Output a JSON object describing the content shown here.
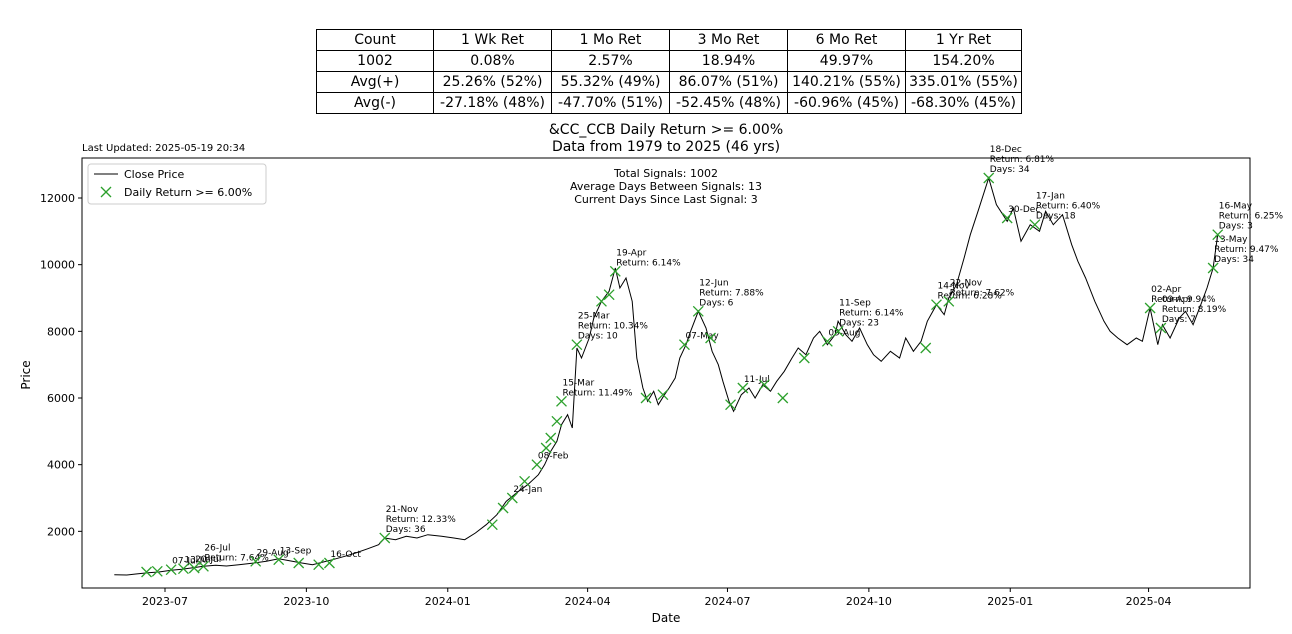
{
  "stats_table": {
    "headers": [
      "Count",
      "1 Wk Ret",
      "1 Mo Ret",
      "3 Mo Ret",
      "6 Mo Ret",
      "1 Yr Ret"
    ],
    "rows": [
      [
        "1002",
        "0.08%",
        "2.57%",
        "18.94%",
        "49.97%",
        "154.20%"
      ],
      [
        "Avg(+)",
        "25.26% (52%)",
        "55.32% (49%)",
        "86.07% (51%)",
        "140.21% (55%)",
        "335.01% (55%)"
      ],
      [
        "Avg(-)",
        "-27.18% (48%)",
        "-47.70% (51%)",
        "-52.45% (48%)",
        "-60.96% (45%)",
        "-68.30% (45%)"
      ]
    ]
  },
  "last_updated": "Last Updated: 2025-05-19 20:34",
  "chart_data": {
    "type": "line",
    "title": "&CC_CCB Daily Return >= 6.00%",
    "subtitle": "Data from 1979 to 2025 (46 yrs)",
    "xlabel": "Date",
    "ylabel": "Price",
    "xlim": [
      "2023-05-08",
      "2025-06-06"
    ],
    "ylim": [
      300,
      13200
    ],
    "x_ticks": [
      {
        "date": "2023-07-01",
        "label": "2023-07"
      },
      {
        "date": "2023-10-01",
        "label": "2023-10"
      },
      {
        "date": "2024-01-01",
        "label": "2024-01"
      },
      {
        "date": "2024-04-01",
        "label": "2024-04"
      },
      {
        "date": "2024-07-01",
        "label": "2024-07"
      },
      {
        "date": "2024-10-01",
        "label": "2024-10"
      },
      {
        "date": "2025-01-01",
        "label": "2025-01"
      },
      {
        "date": "2025-04-01",
        "label": "2025-04"
      }
    ],
    "y_ticks": [
      2000,
      4000,
      6000,
      8000,
      10000,
      12000
    ],
    "legend": {
      "placement": "upper-left",
      "entries": [
        "Close Price",
        "Daily Return >= 6.00%"
      ]
    },
    "stats_box": [
      "Total Signals: 1002",
      "Average Days Between Signals: 13",
      "Current Days Since Last Signal: 3"
    ],
    "colors": {
      "line": "#000000",
      "marker": "#2ca02c"
    },
    "series": [
      {
        "name": "Close Price",
        "points": [
          [
            "2023-05-29",
            700
          ],
          [
            "2023-06-06",
            690
          ],
          [
            "2023-06-12",
            720
          ],
          [
            "2023-06-20",
            760
          ],
          [
            "2023-06-27",
            780
          ],
          [
            "2023-07-05",
            830
          ],
          [
            "2023-07-12",
            860
          ],
          [
            "2023-07-18",
            900
          ],
          [
            "2023-07-26",
            950
          ],
          [
            "2023-08-03",
            980
          ],
          [
            "2023-08-10",
            960
          ],
          [
            "2023-08-18",
            1000
          ],
          [
            "2023-08-28",
            1050
          ],
          [
            "2023-09-05",
            1100
          ],
          [
            "2023-09-13",
            1180
          ],
          [
            "2023-09-20",
            1120
          ],
          [
            "2023-09-28",
            1050
          ],
          [
            "2023-10-05",
            1000
          ],
          [
            "2023-10-12",
            1080
          ],
          [
            "2023-10-18",
            1150
          ],
          [
            "2023-10-26",
            1250
          ],
          [
            "2023-11-02",
            1350
          ],
          [
            "2023-11-10",
            1480
          ],
          [
            "2023-11-17",
            1600
          ],
          [
            "2023-11-21",
            1800
          ],
          [
            "2023-11-28",
            1750
          ],
          [
            "2023-12-05",
            1850
          ],
          [
            "2023-12-12",
            1800
          ],
          [
            "2023-12-19",
            1900
          ],
          [
            "2023-12-28",
            1850
          ],
          [
            "2024-01-05",
            1800
          ],
          [
            "2024-01-12",
            1750
          ],
          [
            "2024-01-19",
            1950
          ],
          [
            "2024-01-26",
            2200
          ],
          [
            "2024-02-02",
            2500
          ],
          [
            "2024-02-08",
            2900
          ],
          [
            "2024-02-16",
            3200
          ],
          [
            "2024-02-22",
            3400
          ],
          [
            "2024-02-29",
            3700
          ],
          [
            "2024-03-04",
            4000
          ],
          [
            "2024-03-08",
            4400
          ],
          [
            "2024-03-12",
            4700
          ],
          [
            "2024-03-15",
            5200
          ],
          [
            "2024-03-19",
            5500
          ],
          [
            "2024-03-22",
            5100
          ],
          [
            "2024-03-25",
            7500
          ],
          [
            "2024-03-28",
            7200
          ],
          [
            "2024-04-02",
            7800
          ],
          [
            "2024-04-05",
            8400
          ],
          [
            "2024-04-10",
            8900
          ],
          [
            "2024-04-15",
            9200
          ],
          [
            "2024-04-19",
            9900
          ],
          [
            "2024-04-22",
            9300
          ],
          [
            "2024-04-26",
            9600
          ],
          [
            "2024-04-30",
            8900
          ],
          [
            "2024-05-03",
            7200
          ],
          [
            "2024-05-07",
            6300
          ],
          [
            "2024-05-10",
            5900
          ],
          [
            "2024-05-14",
            6200
          ],
          [
            "2024-05-17",
            5800
          ],
          [
            "2024-05-21",
            6100
          ],
          [
            "2024-05-24",
            6300
          ],
          [
            "2024-05-28",
            6600
          ],
          [
            "2024-05-31",
            7200
          ],
          [
            "2024-06-04",
            7600
          ],
          [
            "2024-06-07",
            8000
          ],
          [
            "2024-06-12",
            8600
          ],
          [
            "2024-06-17",
            8100
          ],
          [
            "2024-06-21",
            7400
          ],
          [
            "2024-06-25",
            7000
          ],
          [
            "2024-06-28",
            6500
          ],
          [
            "2024-07-02",
            5900
          ],
          [
            "2024-07-05",
            5600
          ],
          [
            "2024-07-10",
            6100
          ],
          [
            "2024-07-15",
            6300
          ],
          [
            "2024-07-19",
            6000
          ],
          [
            "2024-07-24",
            6400
          ],
          [
            "2024-07-29",
            6200
          ],
          [
            "2024-08-02",
            6500
          ],
          [
            "2024-08-07",
            6800
          ],
          [
            "2024-08-12",
            7200
          ],
          [
            "2024-08-16",
            7500
          ],
          [
            "2024-08-21",
            7300
          ],
          [
            "2024-08-26",
            7800
          ],
          [
            "2024-08-30",
            8000
          ],
          [
            "2024-09-04",
            7600
          ],
          [
            "2024-09-09",
            7900
          ],
          [
            "2024-09-11",
            8300
          ],
          [
            "2024-09-16",
            7900
          ],
          [
            "2024-09-20",
            7700
          ],
          [
            "2024-09-25",
            8100
          ],
          [
            "2024-09-30",
            7600
          ],
          [
            "2024-10-04",
            7300
          ],
          [
            "2024-10-09",
            7100
          ],
          [
            "2024-10-15",
            7400
          ],
          [
            "2024-10-21",
            7200
          ],
          [
            "2024-10-25",
            7800
          ],
          [
            "2024-10-30",
            7400
          ],
          [
            "2024-11-04",
            7700
          ],
          [
            "2024-11-08",
            8300
          ],
          [
            "2024-11-14",
            8800
          ],
          [
            "2024-11-19",
            8500
          ],
          [
            "2024-11-22",
            9000
          ],
          [
            "2024-11-27",
            9400
          ],
          [
            "2024-12-02",
            10200
          ],
          [
            "2024-12-06",
            10900
          ],
          [
            "2024-12-11",
            11600
          ],
          [
            "2024-12-18",
            12600
          ],
          [
            "2024-12-23",
            11800
          ],
          [
            "2024-12-30",
            11300
          ],
          [
            "2025-01-03",
            11700
          ],
          [
            "2025-01-08",
            10700
          ],
          [
            "2025-01-14",
            11200
          ],
          [
            "2025-01-20",
            11000
          ],
          [
            "2025-01-24",
            11600
          ],
          [
            "2025-01-29",
            11200
          ],
          [
            "2025-02-04",
            11500
          ],
          [
            "2025-02-10",
            10600
          ],
          [
            "2025-02-14",
            10100
          ],
          [
            "2025-02-19",
            9600
          ],
          [
            "2025-02-25",
            8900
          ],
          [
            "2025-03-03",
            8300
          ],
          [
            "2025-03-07",
            8000
          ],
          [
            "2025-03-12",
            7800
          ],
          [
            "2025-03-18",
            7600
          ],
          [
            "2025-03-24",
            7800
          ],
          [
            "2025-03-28",
            7700
          ],
          [
            "2025-04-02",
            8700
          ],
          [
            "2025-04-07",
            7600
          ],
          [
            "2025-04-10",
            8200
          ],
          [
            "2025-04-15",
            7800
          ],
          [
            "2025-04-21",
            8400
          ],
          [
            "2025-04-25",
            8600
          ],
          [
            "2025-04-30",
            8200
          ],
          [
            "2025-05-05",
            8800
          ],
          [
            "2025-05-09",
            9300
          ],
          [
            "2025-05-13",
            9900
          ],
          [
            "2025-05-16",
            10900
          ]
        ]
      }
    ],
    "signals": [
      {
        "date": "2023-06-19",
        "price": 780,
        "label": ""
      },
      {
        "date": "2023-06-26",
        "price": 800,
        "label": ""
      },
      {
        "date": "2023-07-05",
        "price": 850,
        "label": "07-Jul"
      },
      {
        "date": "2023-07-13",
        "price": 880,
        "label": "13-Jul"
      },
      {
        "date": "2023-07-20",
        "price": 900,
        "label": "20-Jul"
      },
      {
        "date": "2023-07-26",
        "price": 950,
        "label": "26-Jul",
        "return": "Return: 7.64%"
      },
      {
        "date": "2023-08-29",
        "price": 1100,
        "label": "29-Aug"
      },
      {
        "date": "2023-09-13",
        "price": 1150,
        "label": "13-Sep"
      },
      {
        "date": "2023-09-26",
        "price": 1050,
        "label": ""
      },
      {
        "date": "2023-10-09",
        "price": 1000,
        "label": ""
      },
      {
        "date": "2023-10-16",
        "price": 1050,
        "label": "16-Oct"
      },
      {
        "date": "2023-11-21",
        "price": 1800,
        "label": "21-Nov",
        "return": "Return: 12.33%",
        "days": "Days: 36"
      },
      {
        "date": "2024-01-30",
        "price": 2200,
        "label": ""
      },
      {
        "date": "2024-02-06",
        "price": 2700,
        "label": ""
      },
      {
        "date": "2024-02-12",
        "price": 3000,
        "label": "24-Jan"
      },
      {
        "date": "2024-02-20",
        "price": 3500,
        "label": ""
      },
      {
        "date": "2024-02-28",
        "price": 4000,
        "label": "08-Feb"
      },
      {
        "date": "2024-03-05",
        "price": 4500,
        "label": ""
      },
      {
        "date": "2024-03-08",
        "price": 4800,
        "label": ""
      },
      {
        "date": "2024-03-12",
        "price": 5300,
        "label": ""
      },
      {
        "date": "2024-03-15",
        "price": 5900,
        "label": "15-Mar",
        "return": "Return: 11.49%"
      },
      {
        "date": "2024-03-25",
        "price": 7600,
        "label": "25-Mar",
        "return": "Return: 10.34%",
        "days": "Days: 10"
      },
      {
        "date": "2024-04-10",
        "price": 8900,
        "label": ""
      },
      {
        "date": "2024-04-15",
        "price": 9100,
        "label": ""
      },
      {
        "date": "2024-04-19",
        "price": 9800,
        "label": "19-Apr",
        "return": "Return: 6.14%"
      },
      {
        "date": "2024-05-09",
        "price": 6000,
        "label": ""
      },
      {
        "date": "2024-05-20",
        "price": 6100,
        "label": ""
      },
      {
        "date": "2024-06-03",
        "price": 7600,
        "label": "07-May"
      },
      {
        "date": "2024-06-12",
        "price": 8600,
        "label": "12-Jun",
        "return": "Return: 7.88%",
        "days": "Days: 6"
      },
      {
        "date": "2024-06-20",
        "price": 7800,
        "label": ""
      },
      {
        "date": "2024-07-03",
        "price": 5800,
        "label": ""
      },
      {
        "date": "2024-07-11",
        "price": 6300,
        "label": "11-Jul"
      },
      {
        "date": "2024-07-25",
        "price": 6400,
        "label": ""
      },
      {
        "date": "2024-08-06",
        "price": 6000,
        "label": ""
      },
      {
        "date": "2024-08-20",
        "price": 7200,
        "label": ""
      },
      {
        "date": "2024-09-04",
        "price": 7700,
        "label": "09-Aug"
      },
      {
        "date": "2024-09-11",
        "price": 8000,
        "label": "11-Sep",
        "return": "Return: 6.14%",
        "days": "Days: 23"
      },
      {
        "date": "2024-11-07",
        "price": 7500,
        "label": ""
      },
      {
        "date": "2024-11-14",
        "price": 8800,
        "label": "14-Nov",
        "return": "Return: 6.28%"
      },
      {
        "date": "2024-11-22",
        "price": 8900,
        "label": "22-Nov",
        "return": "Return: 7.62%"
      },
      {
        "date": "2024-12-18",
        "price": 12600,
        "label": "18-Dec",
        "return": "Return: 6.81%",
        "days": "Days: 34"
      },
      {
        "date": "2024-12-30",
        "price": 11400,
        "label": "30-Dec"
      },
      {
        "date": "2025-01-17",
        "price": 11200,
        "label": "17-Jan",
        "return": "Return: 6.40%",
        "days": "Days: 18"
      },
      {
        "date": "2025-04-02",
        "price": 8700,
        "label": "02-Apr",
        "return": "Return: 9.94%"
      },
      {
        "date": "2025-04-09",
        "price": 8100,
        "label": "09-Apr",
        "return": "Return: 8.19%",
        "days": "Days: 7"
      },
      {
        "date": "2025-05-13",
        "price": 9900,
        "label": "13-May",
        "return": "Return: 9.47%",
        "days": "Days: 34"
      },
      {
        "date": "2025-05-16",
        "price": 10900,
        "label": "16-May",
        "return": "Return: 6.25%",
        "days": "Days: 3"
      }
    ]
  }
}
